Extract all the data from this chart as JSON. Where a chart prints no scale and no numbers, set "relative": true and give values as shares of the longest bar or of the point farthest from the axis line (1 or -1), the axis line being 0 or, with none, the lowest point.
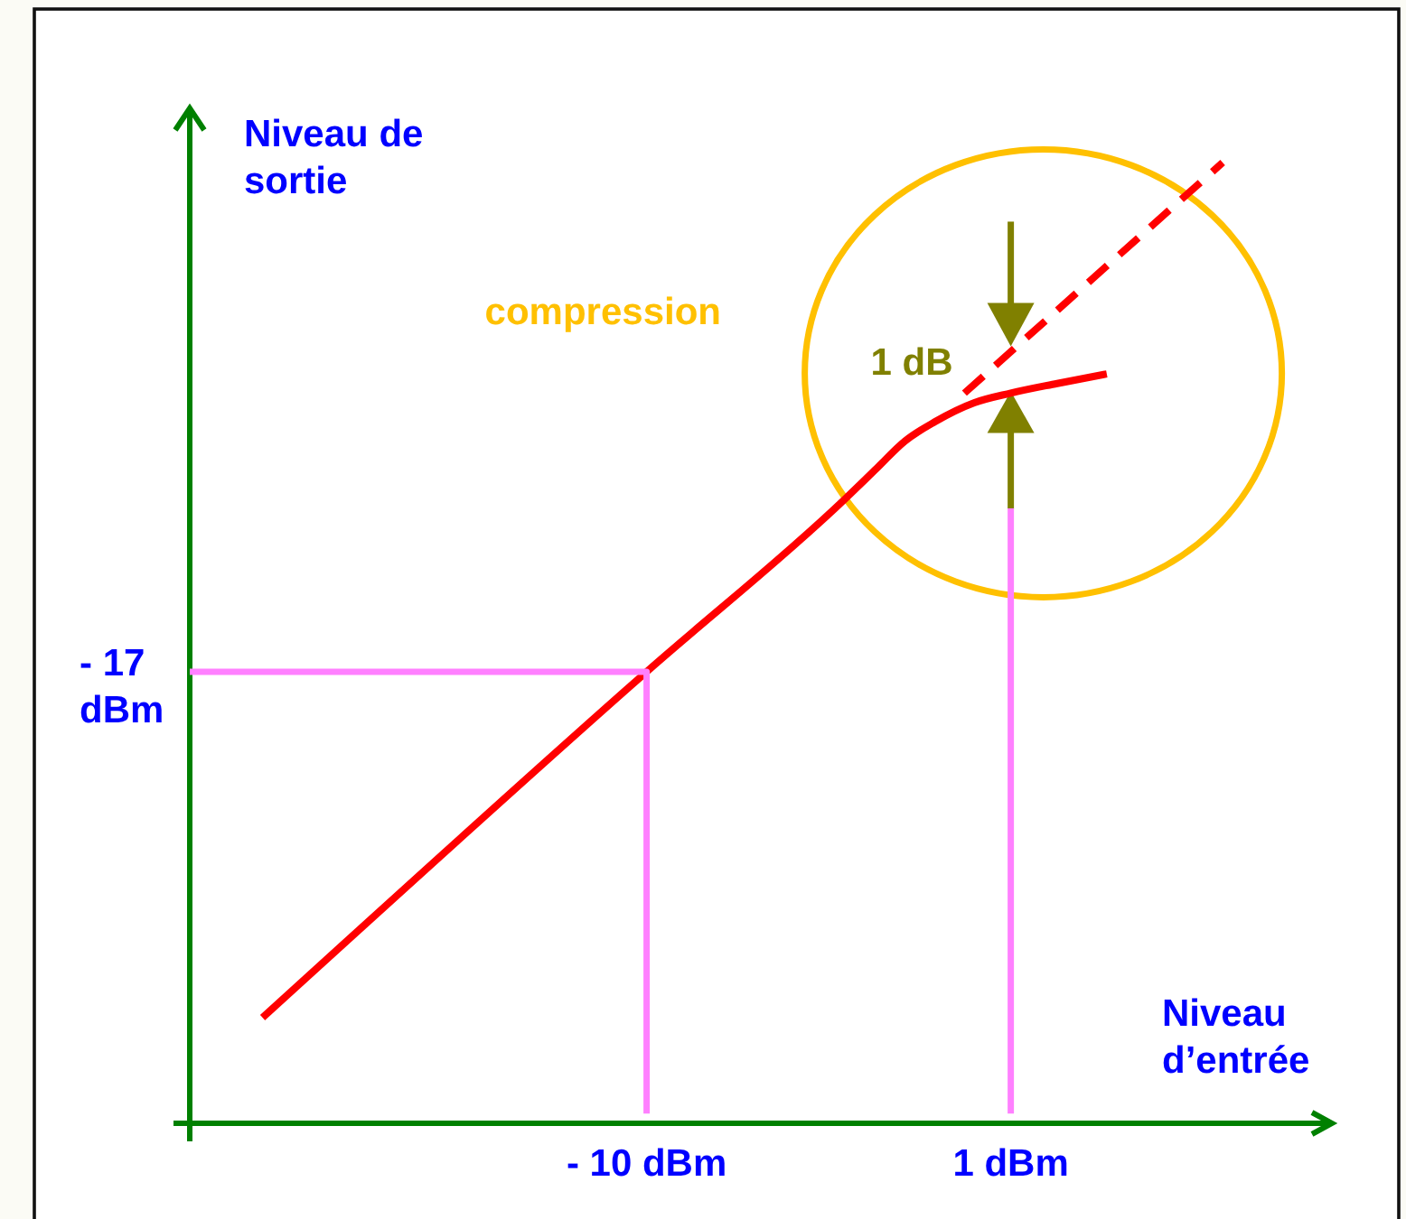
{
  "chart_data": {
    "type": "line",
    "xlabel": "Niveau d’entrée",
    "ylabel": "Niveau de sortie",
    "relative": true,
    "xlim": [
      -23.8,
      10.7
    ],
    "xticks": [
      {
        "value": -10,
        "label": "- 10 dBm"
      },
      {
        "value": 1,
        "label": "1 dBm"
      }
    ],
    "series": [
      {
        "color": "#ff0000",
        "x": [
          -21.6,
          -10,
          -4,
          -3.1,
          -2.2,
          -1.3,
          -0.1,
          1,
          2.4,
          3.9
        ],
        "values": [
          0.11,
          0.47,
          0.65,
          0.68,
          0.71,
          0.73,
          0.75,
          0.76,
          0.77,
          0.78
        ]
      },
      {
        "color": "#ff0000",
        "line_style": "dashed",
        "x": [
          -0.4,
          7.4
        ],
        "values": [
          0.76,
          1
        ]
      },
      {
        "color": "#ff80ff",
        "x": [
          -23.8,
          -10,
          -10
        ],
        "values": [
          0.47,
          0.47,
          0.01
        ]
      },
      {
        "color": "#ff80ff",
        "x": [
          1,
          1
        ],
        "values": [
          0.01,
          0.64
        ]
      }
    ],
    "annotations": [
      "compression",
      {
        "text": "1 dB",
        "x": 1,
        "y": 0.79
      },
      "- 17 dBm"
    ]
  }
}
